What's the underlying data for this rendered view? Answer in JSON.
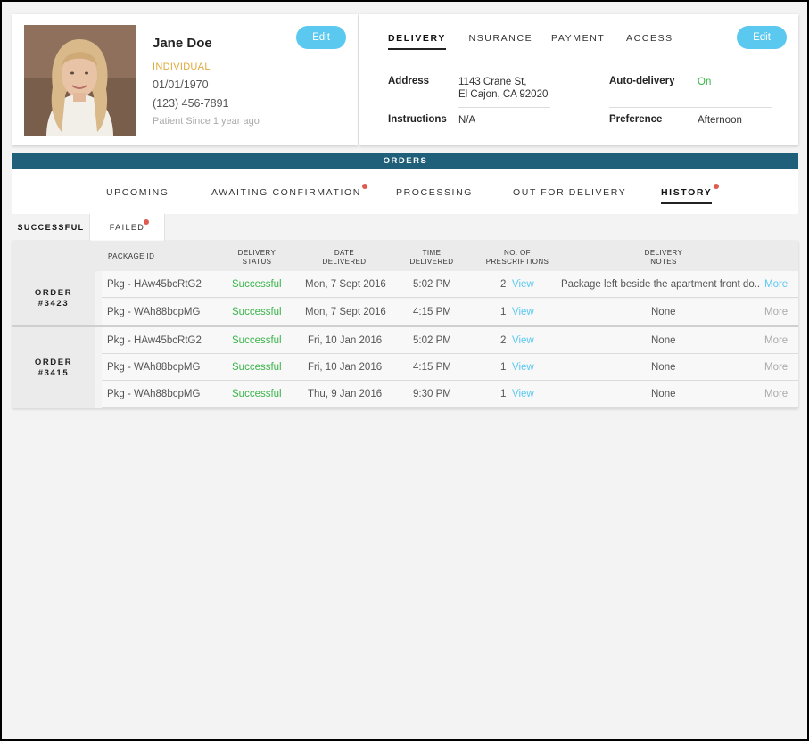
{
  "profile": {
    "name": "Jane Doe",
    "type": "INDIVIDUAL",
    "dob": "01/01/1970",
    "phone": "(123) 456-7891",
    "since": "Patient Since 1 year ago",
    "edit_label": "Edit"
  },
  "info": {
    "tabs": [
      {
        "label": "DELIVERY",
        "active": true
      },
      {
        "label": "INSURANCE",
        "active": false
      },
      {
        "label": "PAYMENT",
        "active": false
      },
      {
        "label": "ACCESS",
        "active": false
      }
    ],
    "edit_label": "Edit",
    "address_label": "Address",
    "address_line1": "1143 Crane St,",
    "address_line2": "El Cajon, CA 92020",
    "instructions_label": "Instructions",
    "instructions_value": "N/A",
    "autodelivery_label": "Auto-delivery",
    "autodelivery_value": "On",
    "preference_label": "Preference",
    "preference_value": "Afternoon"
  },
  "orders": {
    "title": "ORDERS",
    "tabs": [
      {
        "label": "UPCOMING",
        "badge": false,
        "active": false
      },
      {
        "label": "AWAITING CONFIRMATION",
        "badge": true,
        "active": false
      },
      {
        "label": "PROCESSING",
        "badge": false,
        "active": false
      },
      {
        "label": "OUT FOR DELIVERY",
        "badge": false,
        "active": false
      },
      {
        "label": "HISTORY",
        "badge": true,
        "active": true
      }
    ],
    "subtabs": {
      "successful": "SUCCESSFUL",
      "failed": "FAILED"
    },
    "columns": {
      "package": "PACKAGE ID",
      "status_1": "DELIVERY",
      "status_2": "STATUS",
      "date_1": "DATE",
      "date_2": "DELIVERED",
      "time_1": "TIME",
      "time_2": "DELIVERED",
      "rx_1": "NO. OF",
      "rx_2": "PRESCRIPTIONS",
      "notes_1": "DELIVERY",
      "notes_2": "NOTES"
    },
    "groups": [
      {
        "label_1": "ORDER",
        "label_2": "#3423",
        "rows": [
          {
            "pkg": "Pkg - HAw45bcRtG2",
            "status": "Successful",
            "date": "Mon, 7 Sept 2016",
            "time": "5:02 PM",
            "rx": "2",
            "view": "View",
            "notes": "Package left beside the apartment front do..",
            "more": "More",
            "more_active": true
          },
          {
            "pkg": "Pkg - WAh88bcpMG",
            "status": "Successful",
            "date": "Mon, 7 Sept 2016",
            "time": "4:15 PM",
            "rx": "1",
            "view": "View",
            "notes": "None",
            "more": "More",
            "more_active": false
          }
        ]
      },
      {
        "label_1": "ORDER",
        "label_2": "#3415",
        "rows": [
          {
            "pkg": "Pkg - HAw45bcRtG2",
            "status": "Successful",
            "date": "Fri, 10 Jan 2016",
            "time": "5:02 PM",
            "rx": "2",
            "view": "View",
            "notes": "None",
            "more": "More",
            "more_active": false
          },
          {
            "pkg": "Pkg - WAh88bcpMG",
            "status": "Successful",
            "date": "Fri, 10 Jan 2016",
            "time": "4:15 PM",
            "rx": "1",
            "view": "View",
            "notes": "None",
            "more": "More",
            "more_active": false
          },
          {
            "pkg": "Pkg - WAh88bcpMG",
            "status": "Successful",
            "date": "Thu, 9 Jan 2016",
            "time": "9:30 PM",
            "rx": "1",
            "view": "View",
            "notes": "None",
            "more": "More",
            "more_active": false
          }
        ]
      }
    ]
  },
  "colors": {
    "accent": "#5bc8f0",
    "success": "#3ab54a",
    "warning": "#e0a93a",
    "header_bar": "#1f5f7a",
    "badge": "#e05a4f"
  }
}
